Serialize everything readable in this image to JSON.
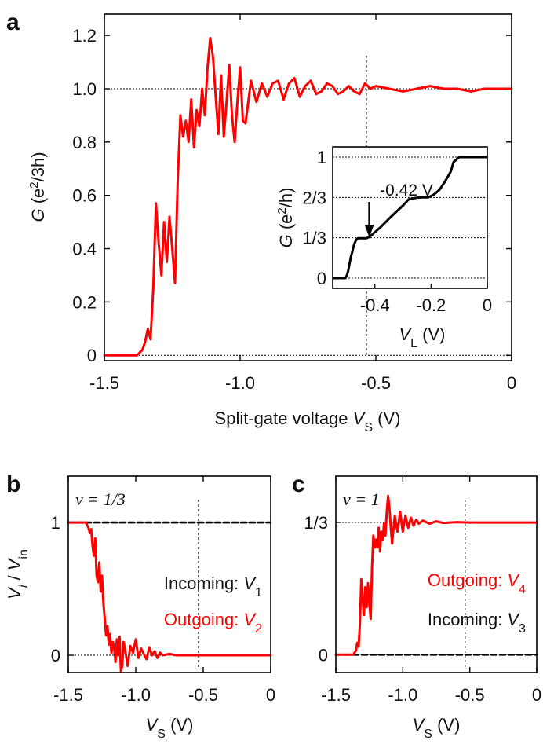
{
  "colors": {
    "outgoing": "#ff0000",
    "incoming": "#000000"
  },
  "chart_data": [
    {
      "panel": "a",
      "type": "line",
      "xlabel_prefix": "Split-gate voltage ",
      "xlabel_var": "V",
      "xlabel_sub": "S",
      "xlabel_unit": " (V)",
      "ylabel_var": "G",
      "ylabel_unit_open": " (e",
      "ylabel_sup": "2",
      "ylabel_unit_close": "/3h)",
      "xlim": [
        -1.5,
        0
      ],
      "ylim": [
        -0.02,
        1.28
      ],
      "xticks": [
        -1.5,
        -1.0,
        -0.5,
        0
      ],
      "xtick_labels": [
        "-1.5",
        "-1.0",
        "-0.5",
        "0"
      ],
      "yticks": [
        0,
        0.2,
        0.4,
        0.6,
        0.8,
        1.0,
        1.2
      ],
      "ytick_labels": [
        "0",
        "0.2",
        "0.4",
        "0.6",
        "0.8",
        "1.0",
        "1.2"
      ],
      "reference_lines_y": [
        0,
        1.0
      ],
      "vertical_marker_x": -0.535,
      "series": [
        {
          "color": "#ff0000",
          "x": [
            -1.5,
            -1.38,
            -1.36,
            -1.35,
            -1.34,
            -1.33,
            -1.32,
            -1.31,
            -1.3,
            -1.29,
            -1.28,
            -1.27,
            -1.26,
            -1.25,
            -1.24,
            -1.23,
            -1.22,
            -1.21,
            -1.2,
            -1.19,
            -1.18,
            -1.17,
            -1.16,
            -1.15,
            -1.14,
            -1.13,
            -1.12,
            -1.11,
            -1.1,
            -1.09,
            -1.08,
            -1.07,
            -1.06,
            -1.05,
            -1.04,
            -1.03,
            -1.02,
            -1.01,
            -1.0,
            -0.99,
            -0.98,
            -0.96,
            -0.94,
            -0.92,
            -0.9,
            -0.88,
            -0.86,
            -0.84,
            -0.82,
            -0.8,
            -0.78,
            -0.76,
            -0.74,
            -0.72,
            -0.7,
            -0.68,
            -0.66,
            -0.64,
            -0.62,
            -0.6,
            -0.58,
            -0.56,
            -0.54,
            -0.52,
            -0.5,
            -0.45,
            -0.4,
            -0.35,
            -0.3,
            -0.25,
            -0.2,
            -0.15,
            -0.1,
            -0.05,
            0.0
          ],
          "y": [
            0.0,
            0.0,
            0.02,
            0.05,
            0.1,
            0.06,
            0.25,
            0.57,
            0.42,
            0.3,
            0.5,
            0.35,
            0.52,
            0.4,
            0.27,
            0.65,
            0.9,
            0.82,
            0.88,
            0.8,
            0.96,
            0.78,
            0.92,
            0.86,
            1.0,
            0.9,
            1.08,
            1.19,
            1.12,
            0.97,
            0.83,
            1.05,
            0.82,
            0.95,
            1.09,
            0.9,
            0.8,
            0.95,
            1.08,
            0.88,
            0.87,
            1.03,
            0.95,
            1.02,
            0.97,
            1.02,
            1.03,
            0.96,
            1.02,
            1.04,
            0.97,
            1.01,
            1.03,
            0.98,
            0.99,
            1.02,
            1.01,
            0.98,
            0.99,
            1.01,
            0.99,
            0.98,
            1.02,
            1.0,
            1.01,
            1.0,
            0.99,
            1.0,
            1.01,
            1.0,
            1.0,
            0.99,
            1.0,
            1.0,
            1.0
          ]
        }
      ],
      "inset": {
        "type": "line",
        "xlabel_var": "V",
        "xlabel_sub": "L",
        "xlabel_unit": " (V)",
        "ylabel_var": "G",
        "ylabel_unit_open": " (e",
        "ylabel_sup": "2",
        "ylabel_unit_close": "/h)",
        "xlim": [
          -0.55,
          0
        ],
        "ylim": [
          0,
          1
        ],
        "xticks": [
          -0.4,
          -0.2,
          0
        ],
        "xtick_labels": [
          "-0.4",
          "-0.2",
          "0"
        ],
        "yticks": [
          0,
          0.3333,
          0.6667,
          1
        ],
        "ytick_labels": [
          "0",
          "1/3",
          "2/3",
          "1"
        ],
        "annotation": "-0.42 V",
        "annotation_x": -0.42,
        "series": [
          {
            "color": "#000000",
            "x": [
              -0.55,
              -0.505,
              -0.5,
              -0.495,
              -0.49,
              -0.485,
              -0.48,
              -0.475,
              -0.47,
              -0.465,
              -0.46,
              -0.455,
              -0.45,
              -0.44,
              -0.43,
              -0.42,
              -0.41,
              -0.4,
              -0.38,
              -0.35,
              -0.3,
              -0.28,
              -0.25,
              -0.23,
              -0.21,
              -0.19,
              -0.17,
              -0.15,
              -0.13,
              -0.12,
              -0.1,
              -0.05,
              0.0
            ],
            "y": [
              0.0,
              0.0,
              0.02,
              0.06,
              0.12,
              0.18,
              0.22,
              0.27,
              0.3,
              0.32,
              0.33,
              0.33,
              0.33,
              0.33,
              0.33,
              0.34,
              0.36,
              0.38,
              0.42,
              0.49,
              0.6,
              0.65,
              0.665,
              0.667,
              0.667,
              0.69,
              0.73,
              0.8,
              0.88,
              0.96,
              1.0,
              1.0,
              1.0
            ]
          }
        ]
      }
    },
    {
      "panel": "b",
      "type": "line",
      "filling": "ν = 1/3",
      "xlabel_var": "V",
      "xlabel_sub": "S",
      "xlabel_unit": " (V)",
      "ylabel_num": "V",
      "ylabel_num_sub": "i",
      "ylabel_den": "V",
      "ylabel_den_sub": "in",
      "xlim": [
        -1.5,
        0
      ],
      "ylim": [
        -0.13,
        1.35
      ],
      "xticks": [
        -1.5,
        -1.0,
        -0.5,
        0
      ],
      "xtick_labels": [
        "-1.5",
        "-1.0",
        "-0.5",
        "0"
      ],
      "yticks": [
        0,
        1
      ],
      "ytick_labels": [
        "0",
        "1"
      ],
      "vertical_marker_x": -0.535,
      "label_top_text": "Incoming: ",
      "label_top_var": "V",
      "label_top_sub": "1",
      "label_bottom_text": "Outgoing: ",
      "label_bottom_var": "V",
      "label_bottom_sub": "2",
      "series": [
        {
          "name": "Incoming: V1",
          "color": "#000000",
          "dashed": true,
          "x": [
            -1.5,
            0
          ],
          "y": [
            1.0,
            1.0
          ]
        },
        {
          "name": "Outgoing: V2",
          "color": "#ff0000",
          "x": [
            -1.5,
            -1.37,
            -1.36,
            -1.35,
            -1.34,
            -1.33,
            -1.32,
            -1.31,
            -1.3,
            -1.29,
            -1.28,
            -1.27,
            -1.26,
            -1.25,
            -1.24,
            -1.23,
            -1.22,
            -1.21,
            -1.2,
            -1.19,
            -1.18,
            -1.17,
            -1.16,
            -1.15,
            -1.14,
            -1.13,
            -1.12,
            -1.11,
            -1.1,
            -1.09,
            -1.08,
            -1.06,
            -1.04,
            -1.02,
            -1.0,
            -0.98,
            -0.96,
            -0.94,
            -0.92,
            -0.9,
            -0.88,
            -0.86,
            -0.84,
            -0.82,
            -0.8,
            -0.75,
            -0.7,
            -0.6,
            -0.5,
            -0.3,
            0.0
          ],
          "y": [
            1.0,
            1.0,
            0.98,
            0.96,
            0.92,
            0.95,
            0.82,
            0.75,
            0.88,
            0.6,
            0.55,
            0.7,
            0.48,
            0.6,
            0.4,
            0.28,
            0.15,
            0.22,
            0.08,
            0.16,
            0.02,
            0.1,
            0.05,
            -0.05,
            0.12,
            0.0,
            0.14,
            -0.12,
            -0.08,
            0.1,
            0.05,
            -0.08,
            0.07,
            0.02,
            0.12,
            -0.02,
            0.05,
            0.01,
            -0.03,
            0.06,
            0.0,
            0.03,
            -0.02,
            0.02,
            0.0,
            0.01,
            0.0,
            0.0,
            0.0,
            0.0,
            0.0
          ]
        }
      ]
    },
    {
      "panel": "c",
      "type": "line",
      "filling": "ν = 1",
      "xlabel_var": "V",
      "xlabel_sub": "S",
      "xlabel_unit": " (V)",
      "xlim": [
        -1.5,
        0
      ],
      "ylim": [
        -0.045,
        0.45
      ],
      "xticks": [
        -1.5,
        -1.0,
        -0.5,
        0
      ],
      "xtick_labels": [
        "-1.5",
        "-1.0",
        "-0.5",
        "0"
      ],
      "yticks": [
        0,
        0.3333
      ],
      "ytick_labels": [
        "0",
        "1/3"
      ],
      "vertical_marker_x": -0.535,
      "label_top_text": "Outgoing: ",
      "label_top_var": "V",
      "label_top_sub": "4",
      "label_bottom_text": "Incoming: ",
      "label_bottom_var": "V",
      "label_bottom_sub": "3",
      "series": [
        {
          "name": "Incoming: V3",
          "color": "#000000",
          "dashed": true,
          "x": [
            -1.5,
            0
          ],
          "y": [
            0.0,
            0.0
          ]
        },
        {
          "name": "Outgoing: V4",
          "color": "#ff0000",
          "x": [
            -1.5,
            -1.37,
            -1.36,
            -1.35,
            -1.34,
            -1.33,
            -1.32,
            -1.31,
            -1.3,
            -1.29,
            -1.28,
            -1.27,
            -1.26,
            -1.25,
            -1.24,
            -1.23,
            -1.22,
            -1.21,
            -1.2,
            -1.19,
            -1.18,
            -1.17,
            -1.16,
            -1.15,
            -1.14,
            -1.13,
            -1.12,
            -1.11,
            -1.1,
            -1.09,
            -1.08,
            -1.06,
            -1.04,
            -1.02,
            -1.0,
            -0.98,
            -0.96,
            -0.94,
            -0.92,
            -0.9,
            -0.88,
            -0.85,
            -0.8,
            -0.75,
            -0.7,
            -0.6,
            -0.5,
            -0.3,
            0.0
          ],
          "y": [
            0.0,
            0.0,
            0.005,
            0.01,
            0.03,
            0.02,
            0.08,
            0.19,
            0.14,
            0.1,
            0.17,
            0.12,
            0.18,
            0.13,
            0.09,
            0.22,
            0.3,
            0.27,
            0.29,
            0.27,
            0.32,
            0.26,
            0.31,
            0.29,
            0.33,
            0.3,
            0.36,
            0.4,
            0.37,
            0.32,
            0.28,
            0.35,
            0.31,
            0.36,
            0.31,
            0.35,
            0.32,
            0.345,
            0.325,
            0.34,
            0.33,
            0.338,
            0.33,
            0.336,
            0.332,
            0.334,
            0.333,
            0.333,
            0.333
          ]
        }
      ]
    }
  ]
}
